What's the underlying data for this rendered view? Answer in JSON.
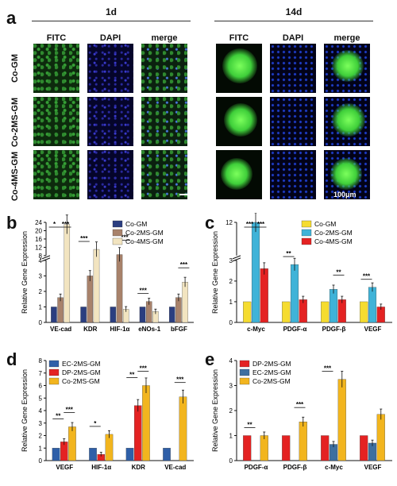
{
  "panel_a": {
    "label": "a",
    "day1": "1d",
    "day14": "14d",
    "columns": [
      "FITC",
      "DAPI",
      "merge"
    ],
    "rows": [
      "Co-GM",
      "Co-2MS-GM",
      "Co-4MS-GM"
    ],
    "scalebar": "100μm"
  },
  "chart_data": [
    {
      "panel": "b",
      "type": "bar",
      "ylabel": "Relative Gene Expression",
      "categories": [
        "VE-cad",
        "KDR",
        "HIF-1α",
        "eNOs-1",
        "bFGF"
      ],
      "series": [
        {
          "name": "Co-GM",
          "values": [
            1,
            1,
            1,
            1,
            1
          ]
        },
        {
          "name": "Co-2MS-GM",
          "values": [
            1.6,
            3.0,
            8.5,
            1.35,
            1.6
          ]
        },
        {
          "name": "Co-4MS-GM",
          "values": [
            23,
            11,
            0.85,
            0.7,
            2.6
          ]
        }
      ],
      "ylim": [
        0,
        24
      ],
      "y_break": [
        4,
        8
      ],
      "yticks": [
        0,
        1,
        2,
        3,
        4,
        8,
        12,
        16,
        20,
        24
      ],
      "significance": [
        "*",
        "***",
        "***",
        "***",
        "***",
        "***"
      ],
      "colors": [
        "#2b3e80",
        "#a8826b",
        "#f2e4c0"
      ]
    },
    {
      "panel": "c",
      "type": "bar",
      "ylabel": "Relative Gene Expression",
      "categories": [
        "c-Myc",
        "PDGF-α",
        "PDGF-β",
        "VEGF"
      ],
      "series": [
        {
          "name": "Co-GM",
          "values": [
            1,
            1,
            1,
            1
          ]
        },
        {
          "name": "Co-2MS-GM",
          "values": [
            12,
            2.8,
            1.6,
            1.7
          ]
        },
        {
          "name": "Co-4MS-GM",
          "values": [
            2.6,
            1.1,
            1.1,
            0.75
          ]
        }
      ],
      "ylim": [
        0,
        12
      ],
      "y_break": [
        3,
        10
      ],
      "yticks": [
        0,
        1,
        2,
        3,
        12
      ],
      "significance": [
        "***",
        "***",
        "**",
        "**",
        "***"
      ],
      "colors": [
        "#f5dc30",
        "#3fb3d8",
        "#e42222"
      ]
    },
    {
      "panel": "d",
      "type": "bar",
      "ylabel": "Relative Gene Expression",
      "categories": [
        "VEGF",
        "HIF-1α",
        "KDR",
        "VE-cad"
      ],
      "series": [
        {
          "name": "EC-2MS-GM",
          "values": [
            1,
            1,
            1,
            1
          ]
        },
        {
          "name": "DP-2MS-GM",
          "values": [
            1.5,
            0.5,
            4.4,
            null
          ]
        },
        {
          "name": "Co-2MS-GM",
          "values": [
            2.7,
            2.1,
            6.0,
            5.1
          ]
        }
      ],
      "ylim": [
        0,
        8
      ],
      "yticks": [
        0,
        1,
        2,
        3,
        4,
        5,
        6,
        7,
        8
      ],
      "significance": [
        "**",
        "***",
        "*",
        "***",
        "**",
        "***"
      ],
      "colors": [
        "#2f5fa8",
        "#e42222",
        "#f2b51e"
      ]
    },
    {
      "panel": "e",
      "type": "bar",
      "ylabel": "Relative Gene Expression",
      "categories": [
        "PDGF-α",
        "PDGF-β",
        "c-Myc",
        "VEGF"
      ],
      "series": [
        {
          "name": "DP-2MS-GM",
          "values": [
            1,
            1,
            1,
            1
          ]
        },
        {
          "name": "EC-2MS-GM",
          "values": [
            null,
            null,
            0.65,
            0.7
          ]
        },
        {
          "name": "Co-2MS-GM",
          "values": [
            1.0,
            1.55,
            3.25,
            1.85
          ]
        }
      ],
      "ylim": [
        0,
        4
      ],
      "yticks": [
        0,
        1,
        2,
        3,
        4
      ],
      "significance": [
        "**",
        "***",
        "***"
      ],
      "colors": [
        "#e42222",
        "#3d6fa0",
        "#f2b51e"
      ]
    }
  ]
}
